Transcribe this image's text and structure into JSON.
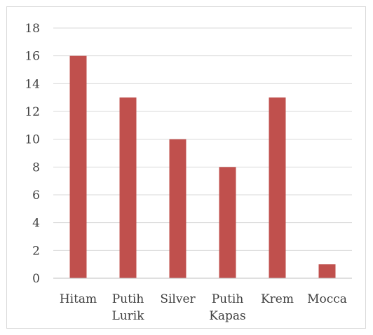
{
  "chart_data": {
    "type": "bar",
    "categories": [
      [
        "Hitam"
      ],
      [
        "Putih",
        "Lurik"
      ],
      [
        "Silver"
      ],
      [
        "Putih",
        "Kapas"
      ],
      [
        "Krem"
      ],
      [
        "Mocca"
      ]
    ],
    "values": [
      16,
      13,
      10,
      8,
      13,
      1
    ],
    "ylim": [
      0,
      18
    ],
    "yticks": [
      "0",
      "2",
      "4",
      "6",
      "8",
      "10",
      "12",
      "14",
      "16",
      "18"
    ],
    "grid": true,
    "legend": "none",
    "bar_color": "#c0504d",
    "grid_color": "#d9d9d9",
    "axis_color": "#bfbfbf"
  }
}
